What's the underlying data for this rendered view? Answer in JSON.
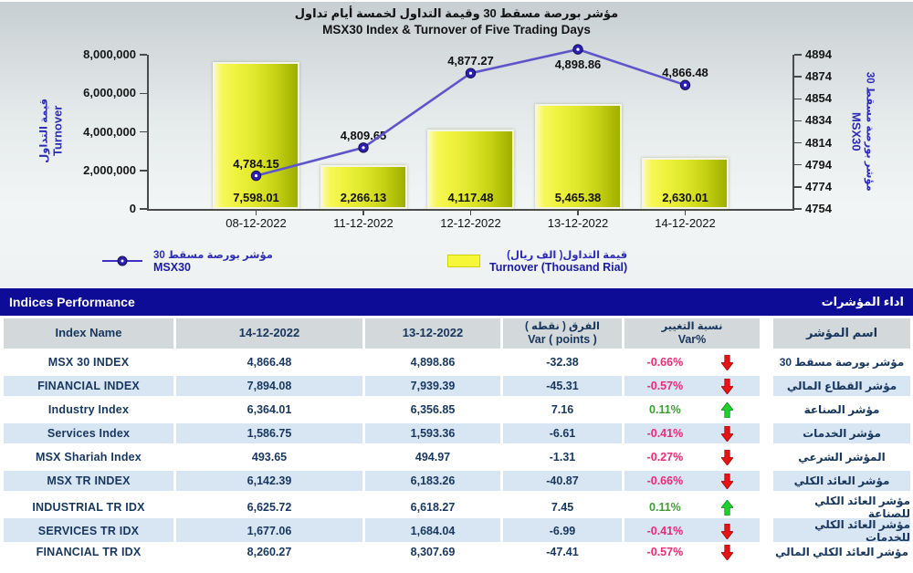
{
  "chart": {
    "title_ar": "مؤشر بورصة مسقط 30 وقيمة التداول لخمسة أيام تداول",
    "title_en": "MSX30 Index & Turnover of Five Trading Days",
    "left_axis": {
      "label_ar": "قيمة التداول",
      "label_en": "Turnover",
      "ticks": [
        "8,000,000",
        "6,000,000",
        "4,000,000",
        "2,000,000",
        "0"
      ]
    },
    "right_axis": {
      "label_ar": "مؤشر بورصة مسقط 30",
      "label_en": "MSX30",
      "ticks": [
        "4894",
        "4874",
        "4854",
        "4834",
        "4814",
        "4794",
        "4774",
        "4754"
      ]
    },
    "legend": {
      "msx30": {
        "label_ar": "مؤشر بورصة مسقط 30",
        "label_en": "MSX30"
      },
      "turnover": {
        "label_ar": "قيمة التداول( الف ريال)",
        "label_en": "Turnover (Thousand Rial)"
      }
    }
  },
  "chart_data": {
    "type": "bar+line",
    "categories": [
      "08-12-2022",
      "11-12-2022",
      "12-12-2022",
      "13-12-2022",
      "14-12-2022"
    ],
    "series": [
      {
        "name": "Turnover (Thousand Rial)",
        "type": "bar",
        "axis": "left",
        "values": [
          7598.01,
          2266.13,
          4117.48,
          5465.38,
          2630.01
        ],
        "labels": [
          "7,598.01",
          "2,266.13",
          "4,117.48",
          "5,465.38",
          "2,630.01"
        ]
      },
      {
        "name": "MSX30",
        "type": "line",
        "axis": "right",
        "values": [
          4784.15,
          4809.65,
          4877.27,
          4898.86,
          4866.48
        ],
        "labels": [
          "4,784.15",
          "4,809.65",
          "4,877.27",
          "4,898.86",
          "4,866.48"
        ]
      }
    ],
    "left_ylim": [
      0,
      8000000
    ],
    "right_ylim": [
      4754,
      4894
    ],
    "grid": false,
    "legend_position": "bottom"
  },
  "table": {
    "title_en": "Indices Performance",
    "title_ar": "اداء المؤشرات",
    "columns": {
      "name": "Index Name",
      "d14": "14-12-2022",
      "d13": "13-12-2022",
      "var_ar": "الفرق ( نقطه )",
      "var_en": "Var ( points )",
      "pct_ar": "نسبة التغيير",
      "pct_en": "Var%",
      "name_ar": "اسم المؤشر"
    },
    "rows": [
      {
        "name": "MSX 30 INDEX",
        "d14": "4,866.48",
        "d13": "4,898.86",
        "var_points": "-32.38",
        "var_pct": "-0.66%",
        "direction": "down",
        "name_ar": "مؤشر بورصة مسقط 30"
      },
      {
        "name": "FINANCIAL INDEX",
        "d14": "7,894.08",
        "d13": "7,939.39",
        "var_points": "-45.31",
        "var_pct": "-0.57%",
        "direction": "down",
        "name_ar": "مؤشر القطاع المالي"
      },
      {
        "name": "Industry Index",
        "d14": "6,364.01",
        "d13": "6,356.85",
        "var_points": "7.16",
        "var_pct": "0.11%",
        "direction": "up",
        "name_ar": "مؤشر الصناعة"
      },
      {
        "name": "Services Index",
        "d14": "1,586.75",
        "d13": "1,593.36",
        "var_points": "-6.61",
        "var_pct": "-0.41%",
        "direction": "down",
        "name_ar": "مؤشر الخدمات"
      },
      {
        "name": "MSX Shariah Index",
        "d14": "493.65",
        "d13": "494.97",
        "var_points": "-1.31",
        "var_pct": "-0.27%",
        "direction": "down",
        "name_ar": "المؤشر الشرعي"
      },
      {
        "name": "MSX TR INDEX",
        "d14": "6,142.39",
        "d13": "6,183.26",
        "var_points": "-40.87",
        "var_pct": "-0.66%",
        "direction": "down",
        "name_ar": "مؤشر العائد الكلي"
      },
      {
        "name": "INDUSTRIAL TR IDX",
        "d14": "6,625.72",
        "d13": "6,618.27",
        "var_points": "7.45",
        "var_pct": "0.11%",
        "direction": "up",
        "name_ar": "مؤشر العائد الكلي للصناعة"
      },
      {
        "name": "SERVICES TR IDX",
        "d14": "1,677.06",
        "d13": "1,684.04",
        "var_points": "-6.99",
        "var_pct": "-0.41%",
        "direction": "down",
        "name_ar": "مؤشر العائد الكلي للخدمات"
      },
      {
        "name": "FINANCIAL TR IDX",
        "d14": "8,260.27",
        "d13": "8,307.69",
        "var_points": "-47.41",
        "var_pct": "-0.57%",
        "direction": "down",
        "name_ar": "مؤشر العائد الكلي المالي"
      }
    ]
  },
  "colors": {
    "header_navy": "#0c0c96",
    "row_alt_blue": "#d8e5f3",
    "header_row_gray": "#d3d8da",
    "negative_pink": "#e62d77",
    "positive_green": "#3f9b35",
    "arrow_down_red": "#e61414",
    "arrow_up_green": "#1fd02f",
    "bar_yellow": "#eff23c",
    "line_blue": "#5e55cb",
    "axis_label_blue": "#2d2db4"
  }
}
